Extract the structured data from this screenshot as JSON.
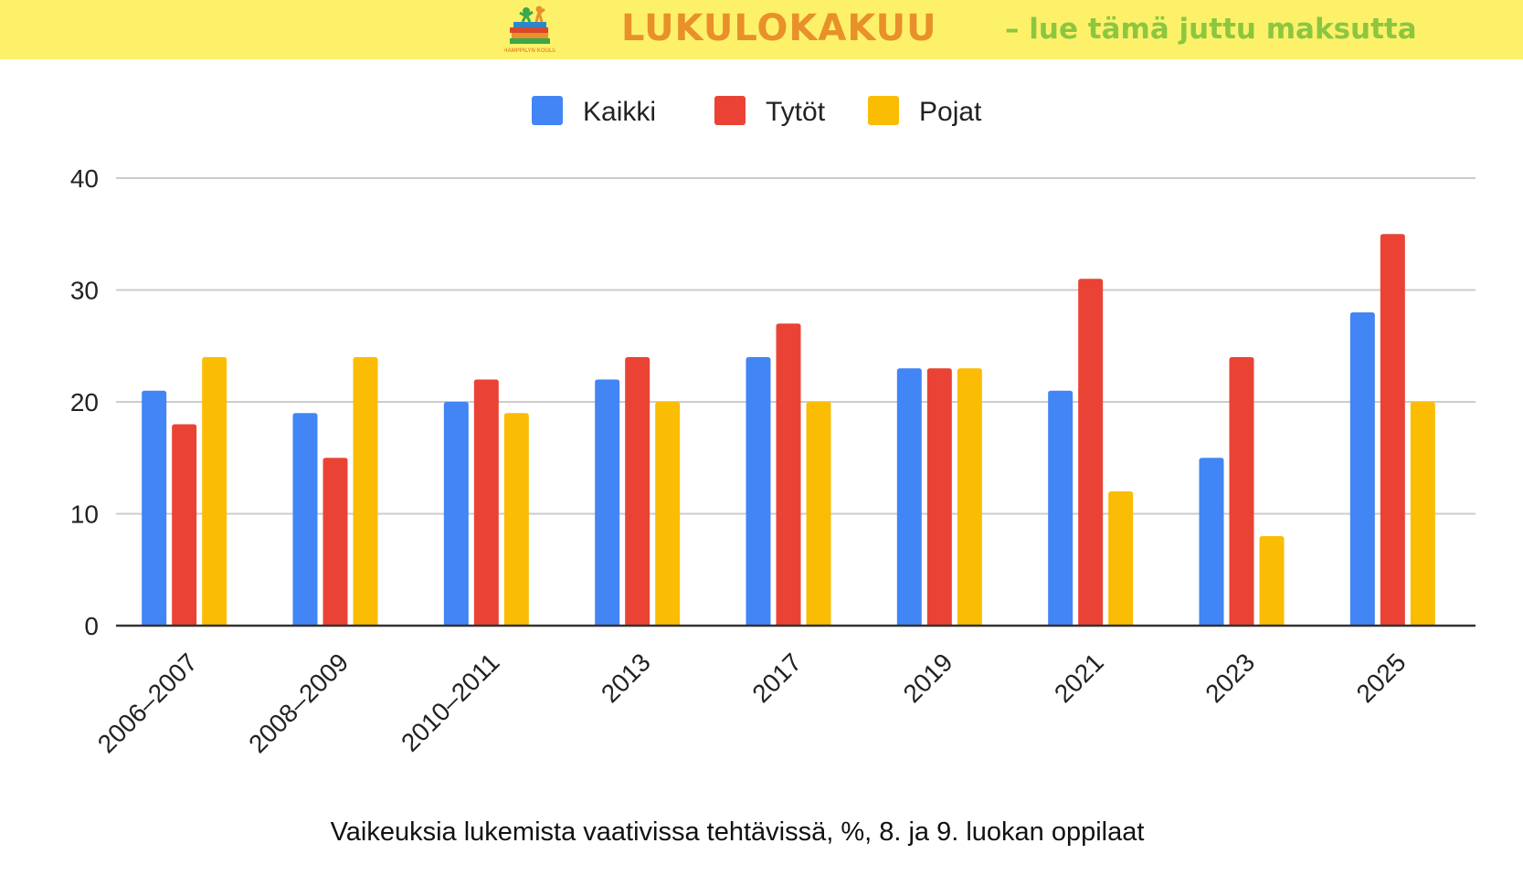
{
  "banner": {
    "title": "LUKULOKAKUU",
    "subtitle": "– lue tämä juttu maksutta",
    "logo_icon": "reading-kids-books-logo",
    "logo_text": "HAMPPILYN KOULU",
    "background_color": "#fdf16a",
    "title_color": "#e8902a",
    "subtitle_color": "#8cc63f"
  },
  "chart_data": {
    "type": "bar",
    "title": "",
    "xlabel": "Vaikeuksia lukemista vaativissa tehtävissä, %, 8. ja 9. luokan oppilaat",
    "ylabel": "",
    "ylim": [
      0,
      40
    ],
    "yticks": [
      0,
      10,
      20,
      30,
      40
    ],
    "grid": true,
    "legend_position": "top-center",
    "categories": [
      "2006–2007",
      "2008–2009",
      "2010–2011",
      "2013",
      "2017",
      "2019",
      "2021",
      "2023",
      "2025"
    ],
    "series": [
      {
        "name": "Kaikki",
        "color": "#4285f4",
        "values": [
          21,
          19,
          20,
          22,
          24,
          23,
          21,
          15,
          28
        ]
      },
      {
        "name": "Tytöt",
        "color": "#ea4335",
        "values": [
          18,
          15,
          22,
          24,
          27,
          23,
          31,
          24,
          35
        ]
      },
      {
        "name": "Pojat",
        "color": "#fbbc04",
        "values": [
          24,
          24,
          19,
          20,
          20,
          23,
          12,
          8,
          20
        ]
      }
    ]
  }
}
